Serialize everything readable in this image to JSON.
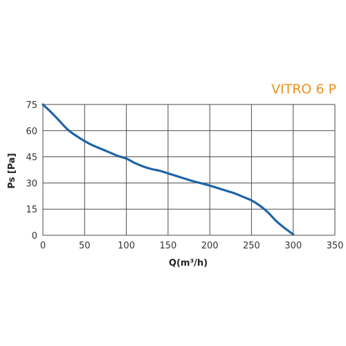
{
  "chart_data": {
    "type": "line",
    "title": "VITRO 6 P",
    "xlabel": "Q(m³/h)",
    "ylabel": "Ps [Pa]",
    "xlim": [
      0,
      350
    ],
    "ylim": [
      0,
      75
    ],
    "xticks": [
      "0",
      "50",
      "100",
      "150",
      "200",
      "250",
      "300",
      "350"
    ],
    "yticks": [
      "0",
      "15",
      "30",
      "45",
      "60",
      "75"
    ],
    "grid": true,
    "series": [
      {
        "x": [
          0,
          10,
          20,
          30,
          40,
          50,
          60,
          70,
          80,
          90,
          100,
          110,
          120,
          130,
          140,
          150,
          160,
          170,
          180,
          190,
          200,
          210,
          220,
          230,
          240,
          250,
          260,
          270,
          280,
          290,
          300
        ],
        "y": [
          75,
          70.5,
          65.5,
          60.5,
          57,
          54,
          51.5,
          49.5,
          47.5,
          45.5,
          44,
          41.5,
          39.5,
          38,
          37,
          35.5,
          34,
          32.5,
          31,
          29.8,
          28.5,
          27,
          25.5,
          24,
          22,
          20,
          17,
          13,
          8,
          4,
          0.5
        ]
      }
    ],
    "colors": {
      "line": "#1e63a8",
      "title": "#f0911e",
      "grid": "#4a4a4a",
      "text": "#333333"
    }
  }
}
